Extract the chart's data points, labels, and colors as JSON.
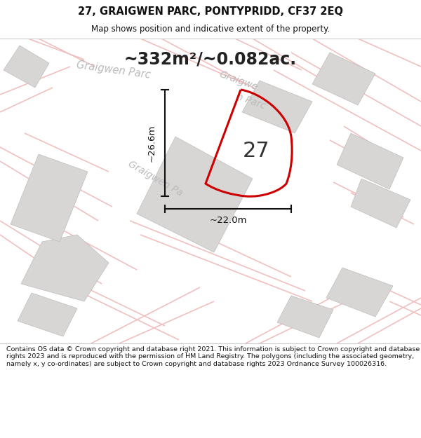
{
  "title_line1": "27, GRAIGWEN PARC, PONTYPRIDD, CF37 2EQ",
  "title_line2": "Map shows position and indicative extent of the property.",
  "area_text": "~332m²/~0.082ac.",
  "number_label": "27",
  "dim_width": "~22.0m",
  "dim_height": "~26.6m",
  "footer_text": "Contains OS data © Crown copyright and database right 2021. This information is subject to Crown copyright and database rights 2023 and is reproduced with the permission of HM Land Registry. The polygons (including the associated geometry, namely x, y co-ordinates) are subject to Crown copyright and database rights 2023 Ordnance Survey 100026316.",
  "bg_color": "#f2f0f0",
  "road_color": "#f0c0c0",
  "building_color": "#d8d5d5",
  "plot_outline_color": "#cc0000",
  "dim_line_color": "#111111",
  "street_text_color": "#bbbbbb",
  "title_bg": "#ffffff",
  "footer_bg": "#ffffff",
  "fig_width": 6.0,
  "fig_height": 6.25,
  "dpi": 100
}
